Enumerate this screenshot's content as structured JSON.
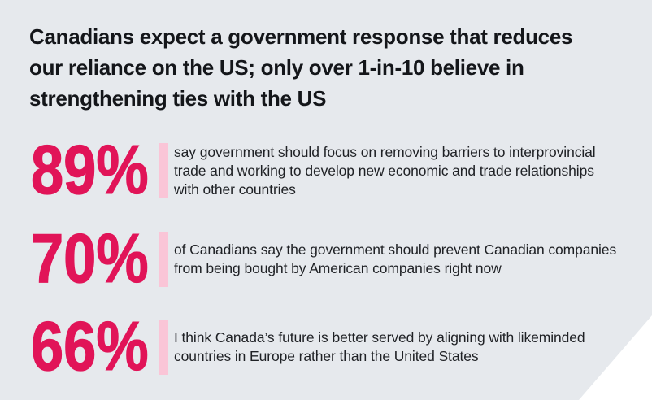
{
  "colors": {
    "background": "#e6e9ed",
    "accent": "#e11458",
    "accent_light": "#fac5d7",
    "headline_text": "#14161a",
    "body_text": "#1f2125",
    "corner_cutout": "#ffffff"
  },
  "headline": "Canadians expect a government response that reduces\nour reliance on the US; only over 1-in-10 believe in\nstrengthening ties with the US",
  "stats": [
    {
      "value": "89%",
      "description": "say government should focus on removing barriers to interprovincial\ntrade and working to develop new economic and trade relationships\nwith other countries"
    },
    {
      "value": "70%",
      "description": "of Canadians say the government should prevent Canadian companies\nfrom being bought by American companies right now"
    },
    {
      "value": "66%",
      "description": "I think Canada’s future is better served by aligning with likeminded\ncountries in Europe rather than the United States"
    }
  ],
  "chart_data": {
    "type": "table",
    "title": "Canadians expect a government response that reduces our reliance on the US; only over 1-in-10 believe in strengthening ties with the US",
    "categories": [
      "say government should focus on removing barriers to interprovincial trade and working to develop new economic and trade relationships with other countries",
      "of Canadians say the government should prevent Canadian companies from being bought by American companies right now",
      "I think Canada’s future is better served by aligning with likeminded countries in Europe rather than the United States"
    ],
    "values": [
      89,
      70,
      66
    ],
    "unit": "%",
    "legend_position": "none",
    "grid": false
  }
}
